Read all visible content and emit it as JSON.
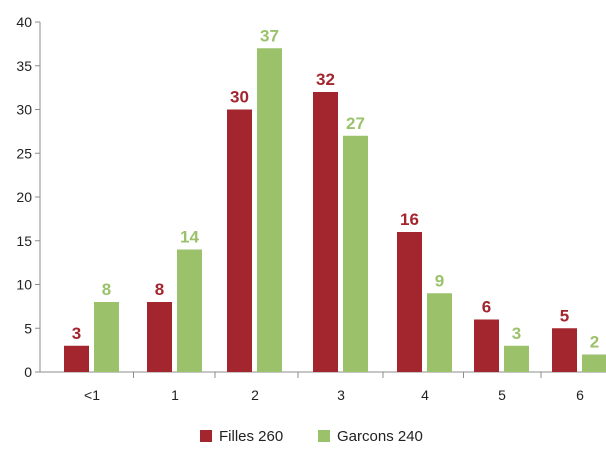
{
  "chart_data": {
    "type": "bar",
    "title": "",
    "xlabel": "",
    "ylabel": "",
    "categories": [
      "<1",
      "1",
      "2",
      "3",
      "4",
      "5",
      "6"
    ],
    "series": [
      {
        "name": "Filles 260",
        "color": "#A3262E",
        "values": [
          3,
          8,
          30,
          32,
          16,
          6,
          5
        ]
      },
      {
        "name": "Garcons 240",
        "color": "#9BC26B",
        "values": [
          8,
          14,
          37,
          27,
          9,
          3,
          2
        ]
      }
    ],
    "ylim": [
      0,
      40
    ],
    "yticks": [
      0,
      5,
      10,
      15,
      20,
      25,
      30,
      35,
      40
    ],
    "data_labels": true,
    "legend_position": "bottom",
    "grid": false
  }
}
